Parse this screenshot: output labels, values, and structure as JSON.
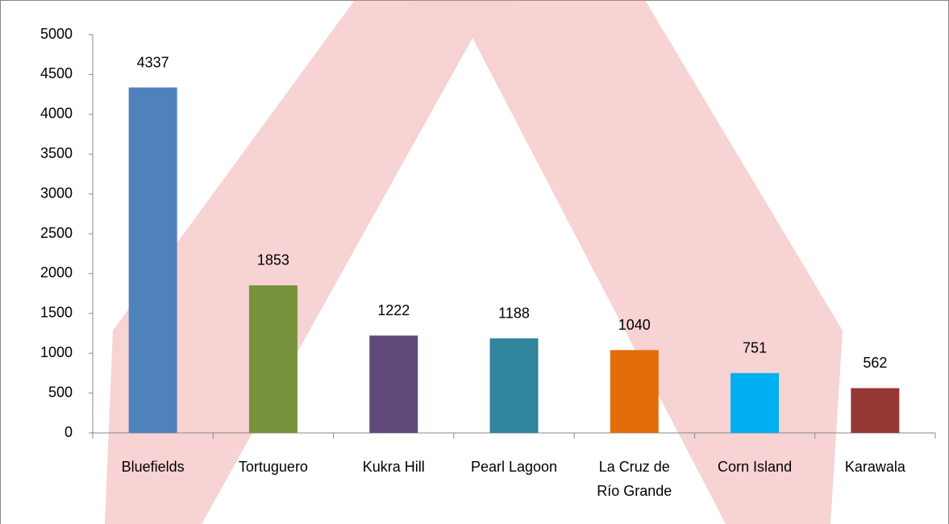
{
  "chart_data": {
    "type": "bar",
    "categories": [
      "Bluefields",
      "Tortuguero",
      "Kukra Hill",
      "Pearl Lagoon",
      "La Cruz de Río Grande",
      "Corn Island",
      "Karawala"
    ],
    "values": [
      4337,
      1853,
      1222,
      1188,
      1040,
      751,
      562
    ],
    "colors": [
      "#4f81bd",
      "#77933c",
      "#604a7b",
      "#31859c",
      "#e46c0a",
      "#00b0f0",
      "#953735"
    ],
    "ylim": [
      0,
      5000
    ],
    "yticks": [
      0,
      500,
      1000,
      1500,
      2000,
      2500,
      3000,
      3500,
      4000,
      4500,
      5000
    ],
    "grid": false
  }
}
